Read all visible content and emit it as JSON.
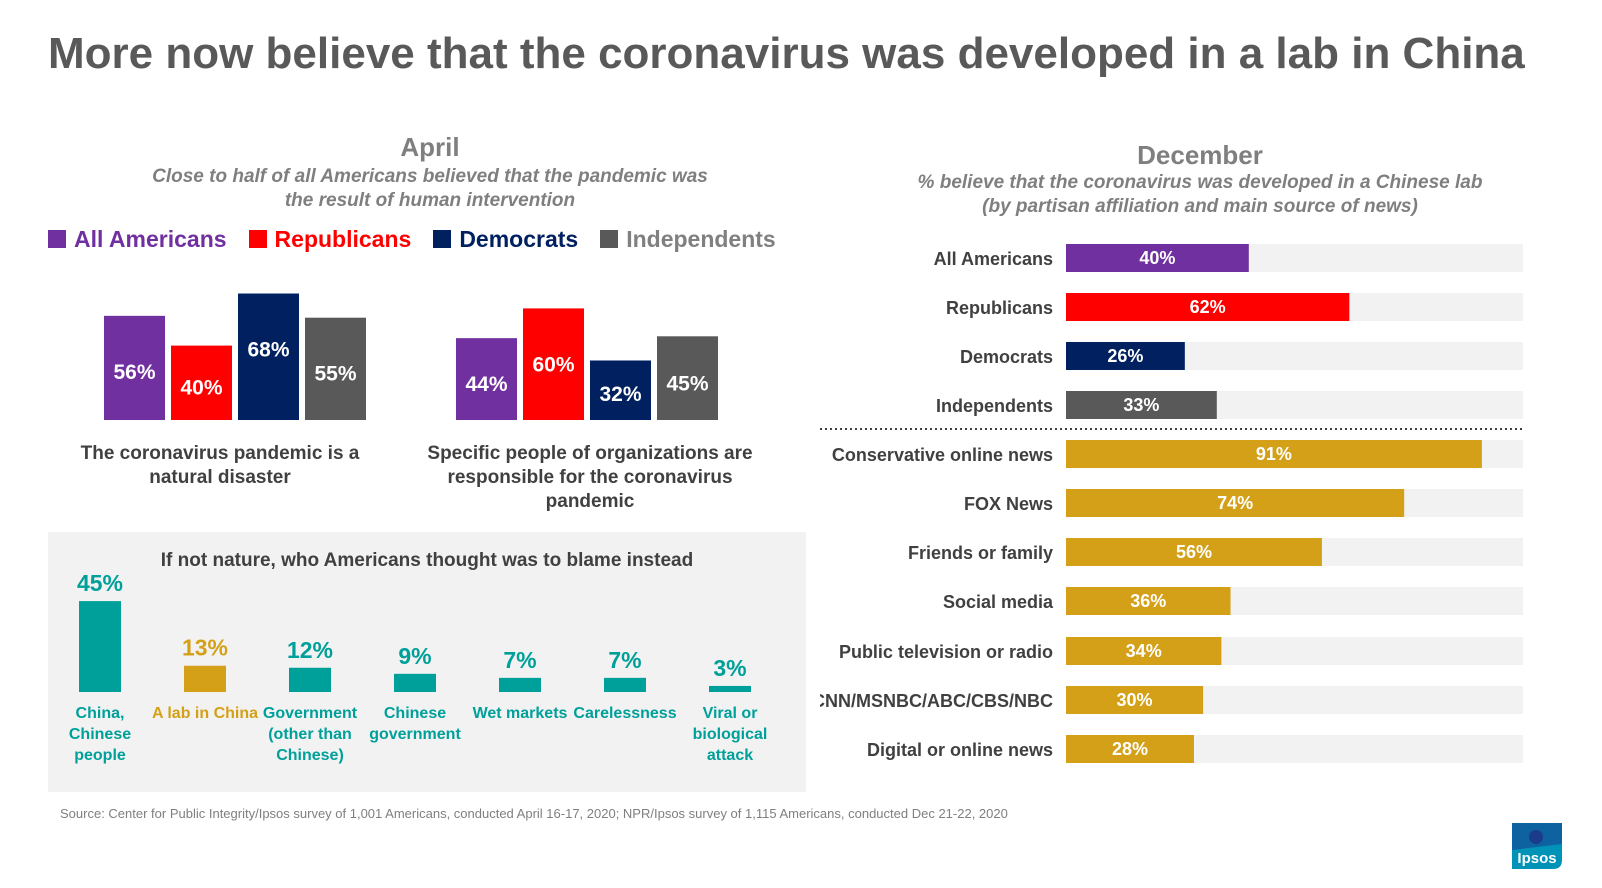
{
  "title": "More now believe that the coronavirus was developed in a lab in China",
  "april": {
    "title": "April",
    "subtitle_line1": "Close to half of all Americans believed that the pandemic was",
    "subtitle_line2": "the result of human intervention"
  },
  "legend": [
    {
      "label": "All Americans",
      "color": "#7030a0"
    },
    {
      "label": "Republicans",
      "color": "#ff0000"
    },
    {
      "label": "Democrats",
      "color": "#002060"
    },
    {
      "label": "Independents",
      "color": "#595959",
      "text_color": "#808080"
    }
  ],
  "groups": {
    "natural": {
      "caption_line1": "The coronavirus pandemic is a",
      "caption_line2": "natural disaster"
    },
    "people": {
      "caption_line1": "Specific people of organizations are",
      "caption_line2": "responsible for the coronavirus",
      "caption_line3": "pandemic"
    }
  },
  "blame": {
    "title": "If not nature, who Americans thought was to blame instead"
  },
  "december": {
    "title": "December",
    "subtitle_line1": "% believe that the coronavirus was developed in a Chinese lab",
    "subtitle_line2": "(by partisan affiliation and main source of news)"
  },
  "source": "Source: Center for Public Integrity/Ipsos survey of 1,001 Americans, conducted April 16-17, 2020; NPR/Ipsos survey of 1,115 Americans, conducted Dec 21-22, 2020",
  "logo_text": "Ipsos",
  "chart_data": [
    {
      "type": "bar",
      "title": "April",
      "categories": [
        "The coronavirus pandemic is a natural disaster",
        "Specific people of organizations are responsible for the coronavirus pandemic"
      ],
      "series": [
        {
          "name": "All Americans",
          "color": "#7030a0",
          "values": [
            56,
            44
          ],
          "labels": [
            "56%",
            "44%"
          ]
        },
        {
          "name": "Republicans",
          "color": "#ff0000",
          "values": [
            40,
            60
          ],
          "labels": [
            "40%",
            "60%"
          ]
        },
        {
          "name": "Democrats",
          "color": "#002060",
          "values": [
            68,
            32
          ],
          "labels": [
            "68%",
            "32%"
          ]
        },
        {
          "name": "Independents",
          "color": "#595959",
          "values": [
            55,
            45
          ],
          "labels": [
            "55%",
            "45%"
          ]
        }
      ],
      "ylim": [
        0,
        70
      ]
    },
    {
      "type": "bar",
      "title": "If not nature, who Americans thought was to blame instead",
      "categories": [
        [
          "China,",
          "Chinese",
          "people"
        ],
        [
          "A lab in China"
        ],
        [
          "Government",
          "(other than",
          "Chinese)"
        ],
        [
          "Chinese",
          "government"
        ],
        [
          "Wet markets"
        ],
        [
          "Carelessness"
        ],
        [
          "Viral or",
          "biological",
          "attack"
        ]
      ],
      "values": [
        45,
        13,
        12,
        9,
        7,
        7,
        3
      ],
      "labels": [
        "45%",
        "13%",
        "12%",
        "9%",
        "7%",
        "7%",
        "3%"
      ],
      "colors": [
        "#00a09a",
        "#d4a017",
        "#00a09a",
        "#00a09a",
        "#00a09a",
        "#00a09a",
        "#00a09a"
      ],
      "ylim": [
        0,
        45
      ]
    },
    {
      "type": "bar",
      "orientation": "horizontal",
      "title": "December",
      "categories": [
        "All Americans",
        "Republicans",
        "Democrats",
        "Independents",
        "Conservative online news",
        "FOX News",
        "Friends or family",
        "Social media",
        "Public television or radio",
        "CNN/MSNBC/ABC/CBS/NBC",
        "Digital or online news"
      ],
      "values": [
        40,
        62,
        26,
        33,
        91,
        74,
        56,
        36,
        34,
        30,
        28
      ],
      "labels": [
        "40%",
        "62%",
        "26%",
        "33%",
        "91%",
        "74%",
        "56%",
        "36%",
        "34%",
        "30%",
        "28%"
      ],
      "colors": [
        "#7030a0",
        "#ff0000",
        "#002060",
        "#595959",
        "#d4a017",
        "#d4a017",
        "#d4a017",
        "#d4a017",
        "#d4a017",
        "#d4a017",
        "#d4a017"
      ],
      "track_color": "#f2f2f2",
      "xlim": [
        0,
        100
      ]
    }
  ]
}
